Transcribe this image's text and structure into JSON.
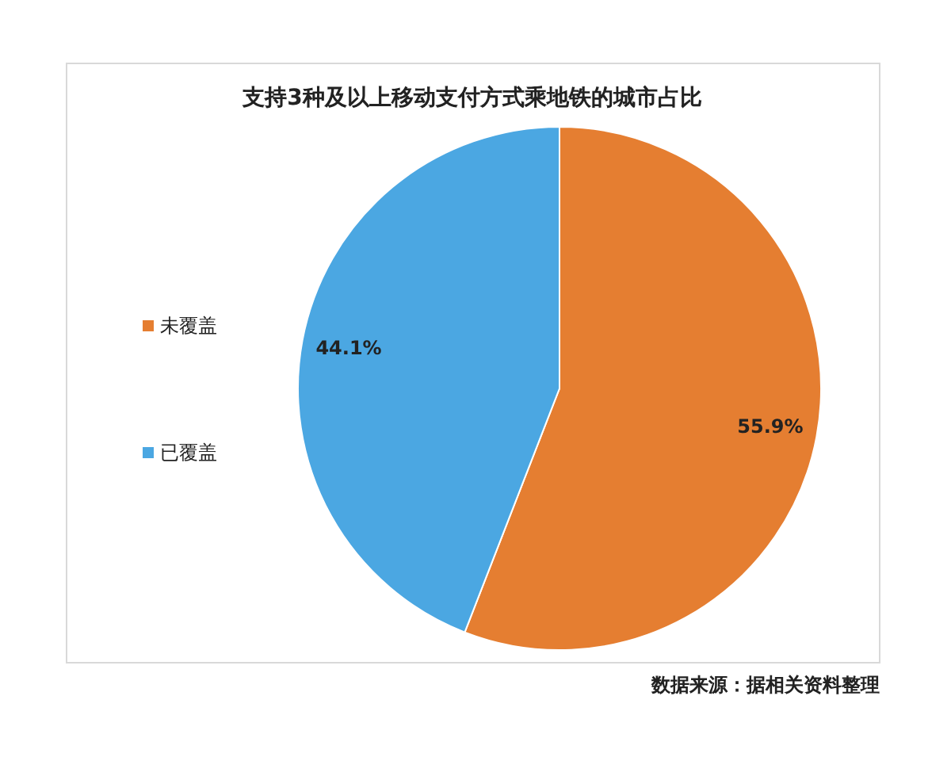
{
  "chart_data": {
    "type": "pie",
    "title": "支持3种及以上移动支付方式乘地铁的城市占比",
    "categories": [
      "未覆盖",
      "已覆盖"
    ],
    "values": [
      55.9,
      44.1
    ],
    "colors": [
      "#e57e31",
      "#4ba7e2"
    ],
    "value_labels": [
      "55.9%",
      "44.1%"
    ],
    "legend": "left",
    "annotations": [
      "数据来源：据相关资料整理"
    ]
  }
}
